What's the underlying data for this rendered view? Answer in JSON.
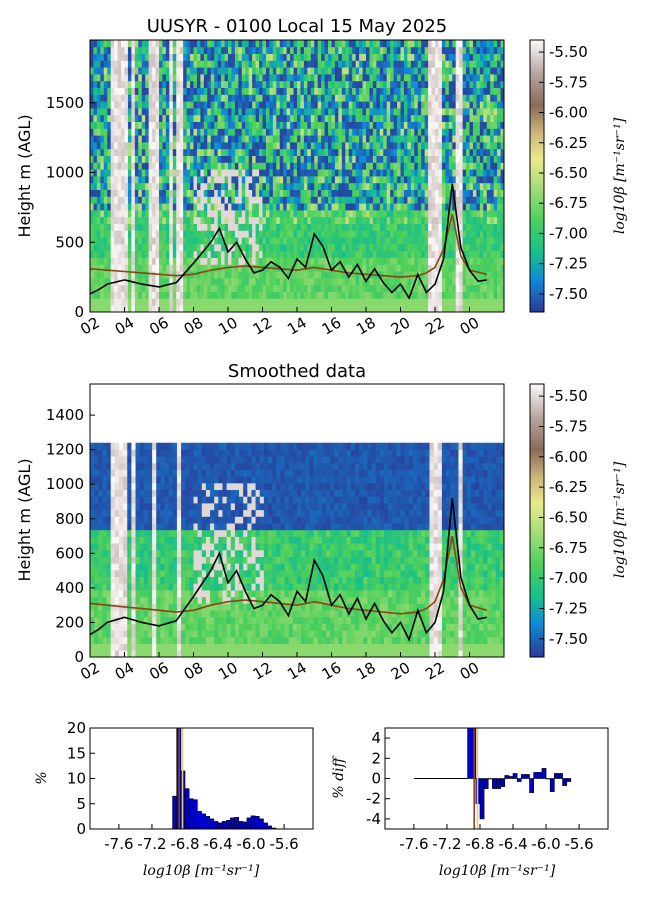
{
  "chart_data": [
    {
      "type": "heatmap",
      "title": "UUSYR - 0100 Local 15 May 2025",
      "ylabel": "Height m (AGL)",
      "xticks": [
        "02",
        "04",
        "06",
        "08",
        "10",
        "12",
        "14",
        "16",
        "18",
        "20",
        "22",
        "00"
      ],
      "yticks": [
        "0",
        "500",
        "1000",
        "1500"
      ],
      "ylim": [
        0,
        1950
      ],
      "colorbar": {
        "label": "log10β [m⁻¹sr⁻¹]",
        "ticks": [
          "-5.50",
          "-5.75",
          "-6.00",
          "-6.25",
          "-6.50",
          "-6.75",
          "-7.00",
          "-7.25",
          "-7.50"
        ],
        "range": [
          -7.65,
          -5.4
        ]
      },
      "lines": [
        {
          "color": "#8b4513",
          "hours": [
            1.0,
            2.0,
            3.0,
            4.0,
            5.0,
            6.0,
            7.0,
            8.0,
            9.0,
            10.0,
            11.0,
            12.0,
            13.0,
            14.0,
            15.0,
            16.0,
            17.0,
            18.0,
            19.0,
            20.0,
            20.5,
            21.0,
            21.5,
            22.0,
            22.5,
            23.0,
            24.0
          ],
          "heights": [
            310,
            300,
            290,
            280,
            270,
            260,
            270,
            300,
            320,
            330,
            320,
            310,
            300,
            320,
            300,
            280,
            270,
            260,
            250,
            260,
            280,
            320,
            450,
            700,
            400,
            300,
            270
          ]
        },
        {
          "color": "#000000",
          "hours": [
            1.0,
            1.5,
            2.0,
            3.0,
            4.0,
            5.0,
            6.0,
            7.0,
            8.0,
            8.5,
            9.0,
            9.5,
            10.0,
            10.5,
            11.0,
            11.5,
            12.0,
            12.5,
            13.0,
            13.5,
            14.0,
            14.5,
            15.0,
            15.5,
            16.0,
            16.5,
            17.0,
            17.5,
            18.0,
            18.5,
            19.0,
            19.5,
            20.0,
            20.5,
            21.0,
            21.5,
            22.0,
            22.5,
            23.0,
            23.5,
            24.0
          ],
          "heights": [
            130,
            160,
            200,
            230,
            200,
            180,
            210,
            350,
            500,
            600,
            430,
            500,
            380,
            280,
            300,
            360,
            320,
            240,
            380,
            320,
            560,
            470,
            300,
            360,
            250,
            340,
            220,
            310,
            210,
            140,
            200,
            100,
            270,
            140,
            200,
            380,
            920,
            460,
            300,
            220,
            230
          ]
        }
      ]
    },
    {
      "type": "heatmap",
      "title": "Smoothed data",
      "ylabel": "Height m (AGL)",
      "xticks": [
        "02",
        "04",
        "06",
        "08",
        "10",
        "12",
        "14",
        "16",
        "18",
        "20",
        "22",
        "00"
      ],
      "yticks": [
        "0",
        "200",
        "400",
        "600",
        "800",
        "1000",
        "1200",
        "1400"
      ],
      "ylim": [
        0,
        1580
      ],
      "data_top": 1240,
      "colorbar": {
        "label": "log10β [m⁻¹sr⁻¹]",
        "ticks": [
          "-5.50",
          "-5.75",
          "-6.00",
          "-6.25",
          "-6.50",
          "-6.75",
          "-7.00",
          "-7.25",
          "-7.50"
        ],
        "range": [
          -7.65,
          -5.4
        ]
      },
      "lines": [
        {
          "color": "#8b4513",
          "hours": [
            1.0,
            2.0,
            3.0,
            4.0,
            5.0,
            6.0,
            7.0,
            8.0,
            9.0,
            10.0,
            11.0,
            12.0,
            13.0,
            14.0,
            15.0,
            16.0,
            17.0,
            18.0,
            19.0,
            20.0,
            20.5,
            21.0,
            21.5,
            22.0,
            22.5,
            23.0,
            24.0
          ],
          "heights": [
            310,
            300,
            290,
            280,
            270,
            260,
            270,
            300,
            320,
            330,
            320,
            310,
            300,
            320,
            300,
            280,
            270,
            260,
            250,
            260,
            280,
            320,
            450,
            700,
            400,
            300,
            270
          ]
        },
        {
          "color": "#000000",
          "hours": [
            1.0,
            1.5,
            2.0,
            3.0,
            4.0,
            5.0,
            6.0,
            7.0,
            8.0,
            8.5,
            9.0,
            9.5,
            10.0,
            10.5,
            11.0,
            11.5,
            12.0,
            12.5,
            13.0,
            13.5,
            14.0,
            14.5,
            15.0,
            15.5,
            16.0,
            16.5,
            17.0,
            17.5,
            18.0,
            18.5,
            19.0,
            19.5,
            20.0,
            20.5,
            21.0,
            21.5,
            22.0,
            22.5,
            23.0,
            23.5,
            24.0
          ],
          "heights": [
            130,
            160,
            200,
            230,
            200,
            180,
            210,
            350,
            500,
            600,
            430,
            500,
            380,
            280,
            300,
            360,
            320,
            240,
            380,
            320,
            560,
            470,
            300,
            360,
            250,
            340,
            220,
            310,
            210,
            140,
            200,
            100,
            270,
            140,
            200,
            380,
            920,
            460,
            300,
            220,
            230
          ]
        }
      ]
    },
    {
      "type": "bar",
      "ylabel": "%",
      "xlabel": "log10β [m⁻¹sr⁻¹]",
      "xticks": [
        "-7.6",
        "-7.2",
        "-6.8",
        "-6.4",
        "-6.0",
        "-5.6"
      ],
      "xlim": [
        -7.95,
        -5.25
      ],
      "ylim": [
        0,
        20
      ],
      "yticks": [
        "0",
        "5",
        "10",
        "15",
        "20"
      ],
      "bin_width": 0.05,
      "bin_start": -6.95,
      "values": [
        6.5,
        20,
        11.5,
        8,
        6,
        5.8,
        3.5,
        3,
        2.5,
        2,
        1.5,
        1.2,
        1.5,
        1.7,
        2.2,
        2.3,
        1.5,
        1.4,
        2.2,
        2.6,
        2.5,
        2.0,
        1.2,
        0.6,
        0.2
      ],
      "vlines": [
        {
          "x": -6.87,
          "color": "#8b4513"
        },
        {
          "x": -6.83,
          "color": "#e8c98a"
        }
      ]
    },
    {
      "type": "bar",
      "ylabel": "% diff",
      "xlabel": "log10β [m⁻¹sr⁻¹]",
      "xticks": [
        "-7.6",
        "-7.2",
        "-6.8",
        "-6.4",
        "-6.0",
        "-5.6"
      ],
      "xlim": [
        -7.95,
        -5.25
      ],
      "ylim": [
        -5,
        5
      ],
      "yticks": [
        "4",
        "2",
        "0",
        "-2",
        "-4"
      ],
      "bin_width": 0.05,
      "bin_start": -6.95,
      "values": [
        20,
        20,
        -2.5,
        -4,
        -1,
        0,
        -1,
        -1,
        -0.8,
        0.3,
        0.2,
        0.5,
        -0.3,
        0.4,
        0.4,
        -1.4,
        0.6,
        0.6,
        1.0,
        0,
        -1.3,
        0.5,
        0.5,
        -0.7,
        -0.3
      ],
      "vlines": [
        {
          "x": -6.87,
          "color": "#8b4513"
        },
        {
          "x": -6.83,
          "color": "#e8c98a"
        }
      ],
      "baseline_from": -7.6
    }
  ]
}
